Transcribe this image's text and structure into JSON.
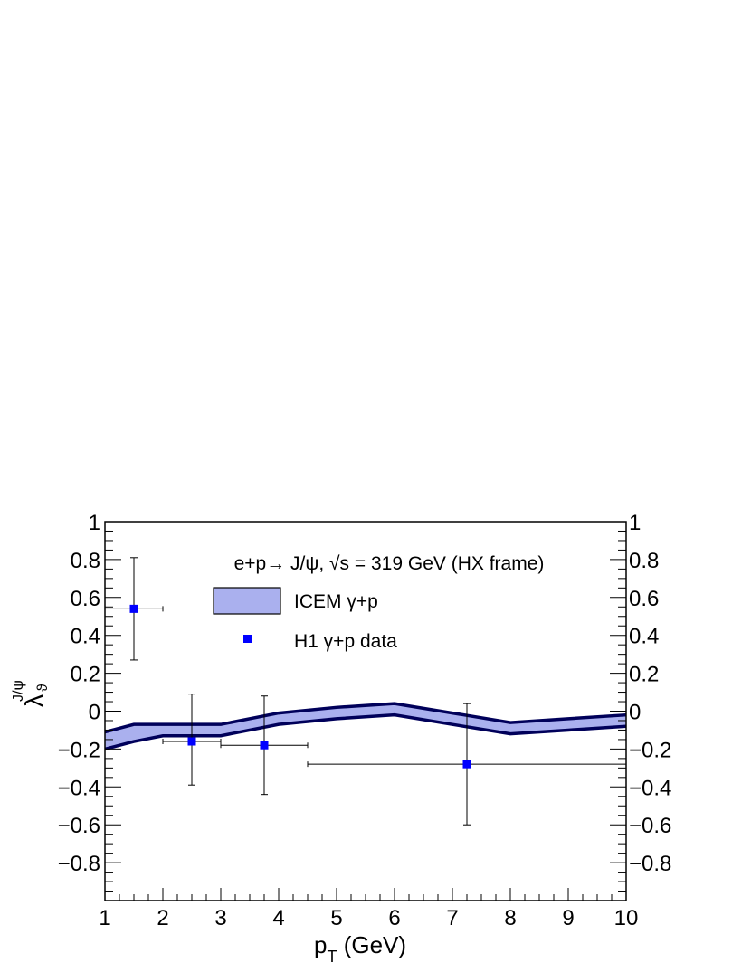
{
  "chart_data": {
    "type": "line",
    "title": "",
    "xlabel": "p_T (GeV)",
    "xlabel_parts": {
      "main": "p",
      "sub": "T",
      "rest": " (GeV)"
    },
    "ylabel_parts": {
      "main": "λ",
      "sub": "ϑ",
      "sup": "J/ψ"
    },
    "xlim": [
      1,
      10
    ],
    "ylim": [
      -1,
      1
    ],
    "x_ticks": [
      "1",
      "2",
      "3",
      "4",
      "5",
      "6",
      "7",
      "8",
      "9",
      "10"
    ],
    "y_ticks": [
      "1",
      "0.8",
      "0.6",
      "0.4",
      "0.2",
      "0",
      "−0.2",
      "−0.4",
      "−0.6",
      "−0.8"
    ],
    "y_tick_values": [
      1,
      0.8,
      0.6,
      0.4,
      0.2,
      0,
      -0.2,
      -0.4,
      -0.6,
      -0.8
    ],
    "grid": false,
    "annotation": "e+p→ J/ψ, √s = 319 GeV (HX frame)",
    "legend_placement": "top-center",
    "series": [
      {
        "name": "ICEM γ+p",
        "kind": "band",
        "color": "#00005a",
        "fill": "#aab0ee",
        "x": [
          1,
          1.5,
          2,
          3,
          4,
          5,
          6,
          7,
          8,
          9,
          10
        ],
        "upper": [
          -0.11,
          -0.07,
          -0.07,
          -0.07,
          -0.01,
          0.02,
          0.04,
          -0.01,
          -0.06,
          -0.04,
          -0.02
        ],
        "lower": [
          -0.2,
          -0.16,
          -0.13,
          -0.13,
          -0.07,
          -0.04,
          -0.02,
          -0.07,
          -0.12,
          -0.1,
          -0.08
        ]
      },
      {
        "name": "H1 γ+p data",
        "kind": "points",
        "color": "#0000ff",
        "x": [
          1.5,
          2.5,
          3.75,
          7.25
        ],
        "y": [
          0.54,
          -0.16,
          -0.18,
          -0.28
        ],
        "x_lo": [
          1.0,
          2.0,
          3.0,
          4.5
        ],
        "x_hi": [
          2.0,
          3.0,
          4.5,
          10.0
        ],
        "y_lo": [
          0.27,
          -0.39,
          -0.44,
          -0.6
        ],
        "y_hi": [
          0.81,
          0.09,
          0.08,
          0.04
        ]
      }
    ]
  }
}
